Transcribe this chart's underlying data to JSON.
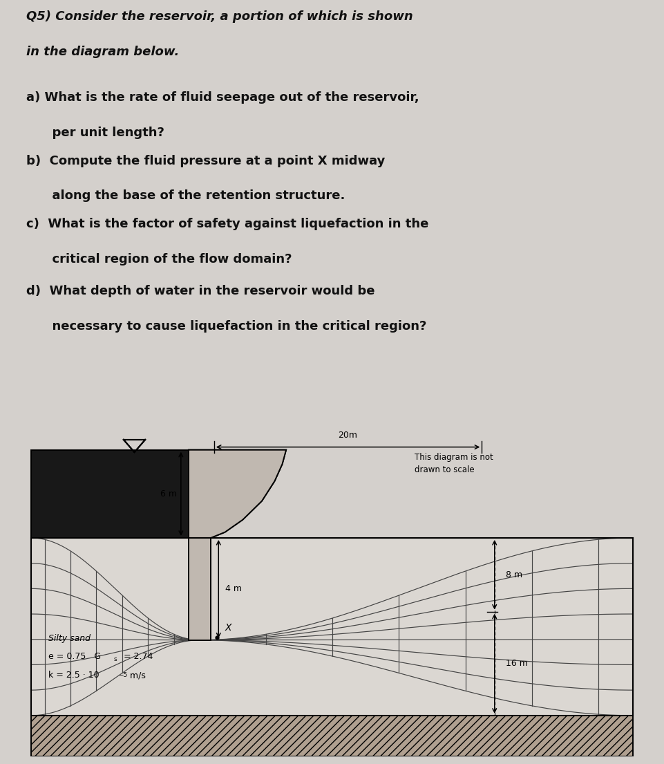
{
  "bg_color": "#d4d0cc",
  "text_color": "#111111",
  "title_line1": "Q5) Consider the reservoir, a portion of which is shown",
  "title_line2": "in the diagram below.",
  "q_a": "a) What is the rate of fluid seepage out of the reservoir,",
  "q_a2": "      per unit length?",
  "q_b": "b)  Compute the fluid pressure at a point X midway",
  "q_b2": "      along the base of the retention structure.",
  "q_c": "c)  What is the factor of safety against liquefaction in the",
  "q_c2": "      critical region of the flow domain?",
  "q_d": "d)  What depth of water in the reservoir would be",
  "q_d2": "      necessary to cause liquefaction in the critical region?",
  "note": "This diagram is not\ndrawn to scale",
  "dim_20m": "20m",
  "dim_6m": "6 m",
  "dim_4m": "4 m",
  "dim_8m": "8 m",
  "dim_16m": "16 m",
  "label_silty_sand": "Silty sand",
  "label_e": "e = 0.75   G",
  "label_s": "s",
  "label_e2": " = 2.74",
  "label_k": "k = 2.5 · 10",
  "label_k2": "−5",
  "label_k3": " m/s",
  "label_X": "X",
  "grid_color": "#444444",
  "diagram_bg": "#e0dcd8",
  "hatch_color": "#b0a090",
  "wall_color": "#181818",
  "dam_color": "#c0b8b0"
}
